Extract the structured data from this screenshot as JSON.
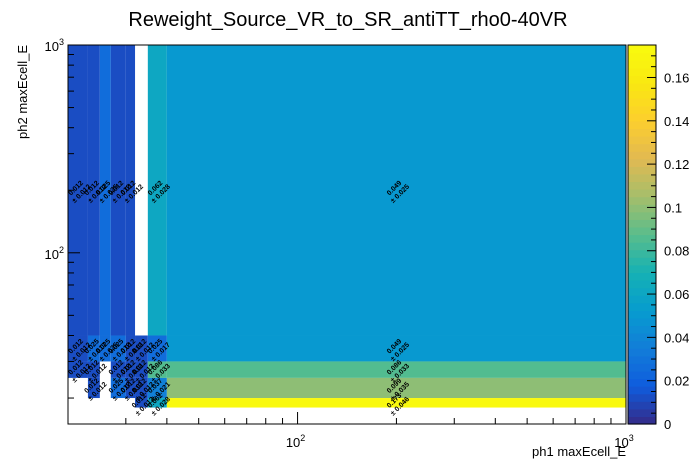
{
  "chart_data": {
    "type": "heatmap",
    "title": "Reweight_Source_VR_to_SR_antiTT_rho0-40VR",
    "xlabel": "ph1 maxEcell_E",
    "ylabel": "ph2 maxEcell_E",
    "x_scale": "log",
    "y_scale": "log",
    "xlim": [
      20,
      1000
    ],
    "ylim": [
      15,
      1000
    ],
    "zlim": [
      0,
      0.175
    ],
    "x_tick_labels": [
      {
        "value": 100,
        "base": "10",
        "exp": "2"
      },
      {
        "value": 1000,
        "base": "10",
        "exp": "3"
      }
    ],
    "y_tick_labels": [
      {
        "value": 100,
        "base": "10",
        "exp": "2"
      },
      {
        "value": 1000,
        "base": "10",
        "exp": "3"
      }
    ],
    "z_ticks": [
      "0",
      "0.02",
      "0.04",
      "0.06",
      "0.08",
      "0.1",
      "0.12",
      "0.14",
      "0.16"
    ],
    "z_tick_values": [
      0,
      0.02,
      0.04,
      0.06,
      0.08,
      0.1,
      0.12,
      0.14,
      0.16
    ],
    "x_edges": [
      20,
      23,
      25,
      27,
      30,
      32,
      35,
      40,
      1000
    ],
    "y_edges": [
      15,
      18,
      20,
      25,
      30,
      40,
      1000
    ],
    "cells": [
      {
        "xi": 0,
        "yi": 5,
        "value": 0.012,
        "label": "0.012\n± 0.012"
      },
      {
        "xi": 1,
        "yi": 5,
        "value": 0.012,
        "label": "0.012\n± 0.012"
      },
      {
        "xi": 2,
        "yi": 5,
        "value": 0.025,
        "label": "0.025\n± 0.025"
      },
      {
        "xi": 3,
        "yi": 5,
        "value": 0.012,
        "label": "0.012\n± 0.012"
      },
      {
        "xi": 4,
        "yi": 5,
        "value": 0.012,
        "label": "0.012\n± 0.012"
      },
      {
        "xi": 6,
        "yi": 5,
        "value": 0.062,
        "label": "0.062\n± 0.028"
      },
      {
        "xi": 7,
        "yi": 5,
        "value": 0.049,
        "label": "0.049\n± 0.025"
      },
      {
        "xi": 0,
        "yi": 4,
        "value": 0.012,
        "label": "0.012\n± 0.012"
      },
      {
        "xi": 1,
        "yi": 4,
        "value": 0.025,
        "label": "0.025\n± 0.017"
      },
      {
        "xi": 2,
        "yi": 4,
        "value": 0.025,
        "label": "0.025\n± 0.025"
      },
      {
        "xi": 3,
        "yi": 4,
        "value": 0.025,
        "label": "0.025\n± 0.012"
      },
      {
        "xi": 4,
        "yi": 4,
        "value": 0.012,
        "label": "0.012\n± 0.012"
      },
      {
        "xi": 5,
        "yi": 4,
        "value": 0.012,
        "label": "0.012\n± 0.012"
      },
      {
        "xi": 6,
        "yi": 4,
        "value": 0.025,
        "label": "0.025\n± 0.017"
      },
      {
        "xi": 7,
        "yi": 4,
        "value": 0.049,
        "label": "0.049\n± 0.025"
      },
      {
        "xi": 0,
        "yi": 3,
        "value": 0.012,
        "label": "0.012\n± 0.012"
      },
      {
        "xi": 1,
        "yi": 3,
        "value": 0.012,
        "label": "0.012\n± 0.012"
      },
      {
        "xi": 3,
        "yi": 3,
        "value": 0.012,
        "label": "0.012\n± 0.012"
      },
      {
        "xi": 4,
        "yi": 3,
        "value": 0.012,
        "label": "0.012\n± 0.012"
      },
      {
        "xi": 5,
        "yi": 3,
        "value": 0.012,
        "label": "0.012\n± 0.012"
      },
      {
        "xi": 6,
        "yi": 3,
        "value": 0.086,
        "label": "0.086\n± 0.033"
      },
      {
        "xi": 7,
        "yi": 3,
        "value": 0.086,
        "label": "0.086\n± 0.033"
      },
      {
        "xi": 1,
        "yi": 2,
        "value": 0.012,
        "label": "0.012\n± 0.012"
      },
      {
        "xi": 3,
        "yi": 2,
        "value": 0.025,
        "label": "0.025\n± 0.017"
      },
      {
        "xi": 4,
        "yi": 2,
        "value": 0.012,
        "label": "0.012\n± 0.012"
      },
      {
        "xi": 5,
        "yi": 2,
        "value": 0.012,
        "label": "0.012\n± 0.012"
      },
      {
        "xi": 6,
        "yi": 2,
        "value": 0.037,
        "label": "0.037\n± 0.021"
      },
      {
        "xi": 7,
        "yi": 2,
        "value": 0.099,
        "label": "0.099\n± 0.035"
      },
      {
        "xi": 5,
        "yi": 1,
        "value": 0.012,
        "label": "0.012\n± 0.012"
      },
      {
        "xi": 6,
        "yi": 1,
        "value": 0.062,
        "label": "0.062\n± 0.028"
      },
      {
        "xi": 7,
        "yi": 1,
        "value": 0.173,
        "label": "0.173\n± 0.046"
      }
    ]
  }
}
